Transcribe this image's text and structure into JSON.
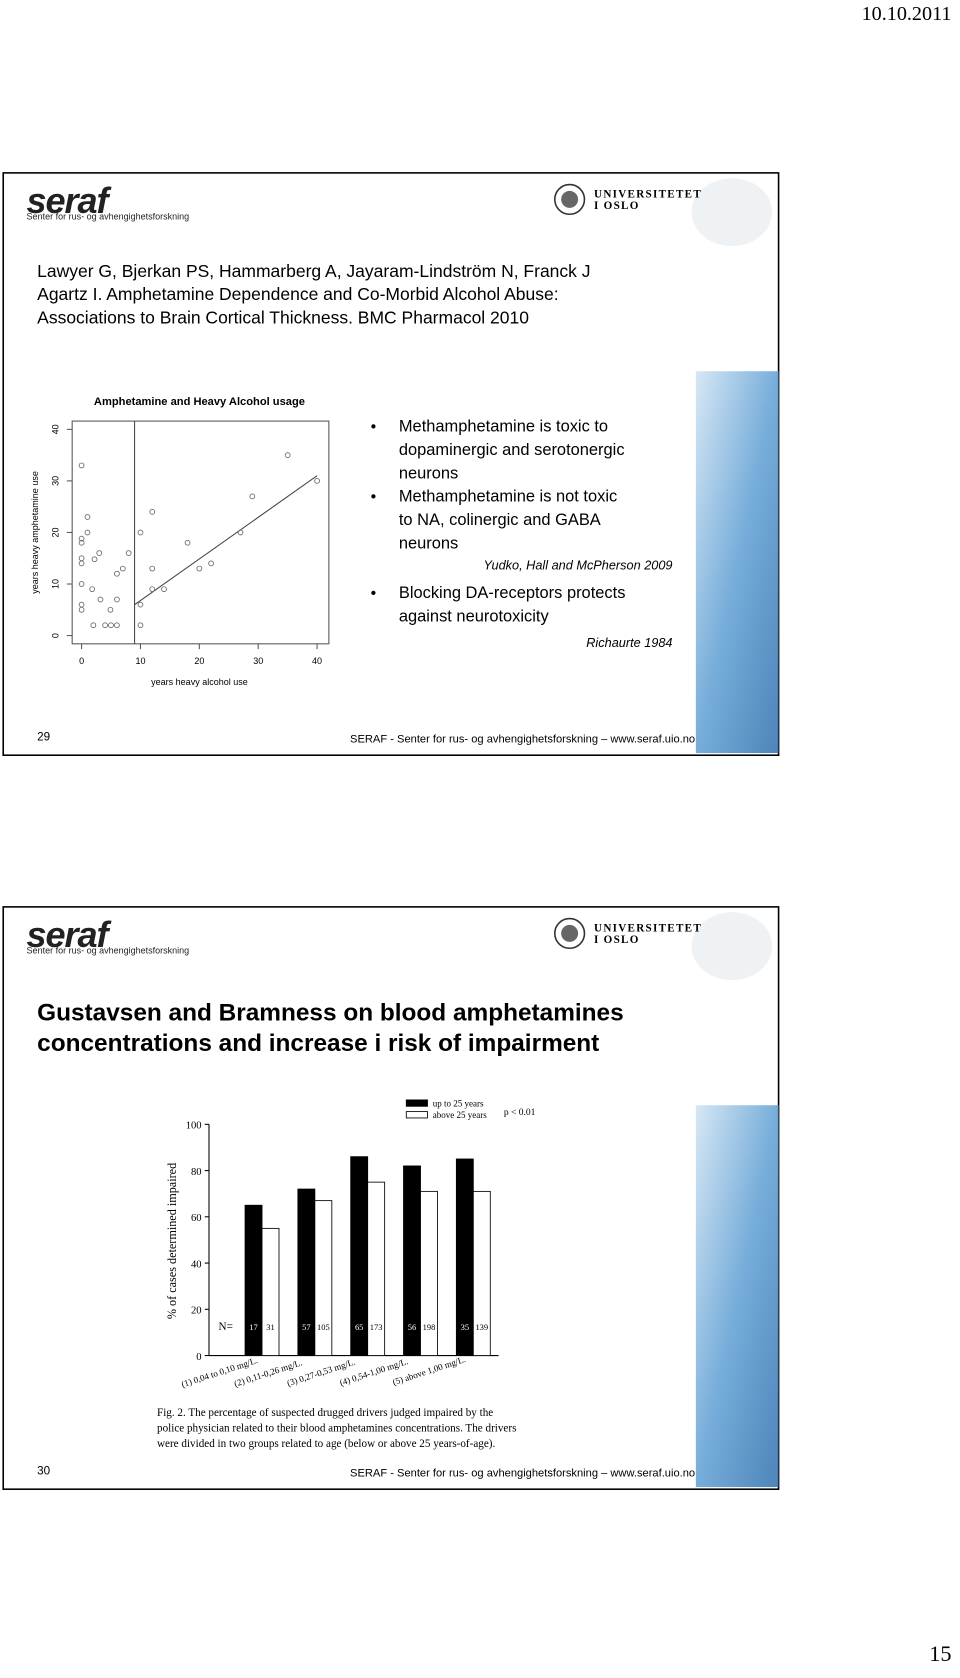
{
  "header_date": "10.10.2011",
  "page_number": "15",
  "slides": [
    {
      "logo": "seraf",
      "logo_subtitle": "Senter for rus- og avhengighetsforskning",
      "university": [
        "UNIVERSITETET",
        "I OSLO"
      ],
      "citation": [
        "Lawyer G, Bjerkan PS, Hammarberg A, Jayaram-Lindström N, Franck J",
        "Agartz I. Amphetamine Dependence and Co-Morbid Alcohol Abuse:",
        "Associations to Brain Cortical Thickness. BMC Pharmacol  2010"
      ],
      "chart_data": {
        "type": "scatter",
        "title": "Amphetamine and Heavy Alcohol usage",
        "x_label": "years heavy alcohol use",
        "y_label": "years heavy amphetamine use",
        "x": [
          0,
          0,
          0,
          1,
          1,
          0,
          0,
          2.2,
          3,
          0,
          1.8,
          0,
          0,
          3.2,
          4.9,
          6,
          7,
          8,
          6,
          2,
          4,
          5,
          6,
          10,
          10,
          10,
          12,
          12,
          12,
          14,
          18,
          20,
          22,
          27,
          29,
          35,
          40
        ],
        "y": [
          33,
          18.8,
          18,
          23,
          20,
          15,
          14,
          14.8,
          16,
          10,
          9,
          6,
          5,
          7,
          5,
          12,
          13,
          16,
          7,
          2,
          2,
          2,
          2,
          20,
          6,
          2,
          24,
          13,
          9,
          9,
          18,
          13,
          14,
          20,
          27,
          35,
          30
        ],
        "vline_x": 9,
        "fit_line": {
          "x": [
            9,
            40
          ],
          "y": [
            6,
            31
          ]
        },
        "xlim": [
          -1.6,
          42
        ],
        "ylim": [
          -1.6,
          41.6
        ],
        "xticks": [
          0,
          10,
          20,
          30,
          40
        ],
        "yticks": [
          0,
          10,
          20,
          30,
          40
        ]
      },
      "bullets": [
        [
          "Methamphetamine is toxic to",
          "dopaminergic and serotonergic",
          "neurons"
        ],
        [
          "Methamphetamine is not toxic",
          "to NA, colinergic and GABA",
          "neurons"
        ],
        [
          "Blocking DA-receptors protects",
          "against neurotoxicity"
        ]
      ],
      "references": [
        "Yudko, Hall and McPherson 2009",
        "Richaurte 1984"
      ],
      "slide_number": "29",
      "footer": "SERAF - Senter for rus- og avhengighetsforskning – www.seraf.uio.no"
    },
    {
      "logo": "seraf",
      "logo_subtitle": "Senter for rus- og avhengighetsforskning",
      "university": [
        "UNIVERSITETET",
        "I OSLO"
      ],
      "title": [
        "Gustavsen and Bramness on blood amphetamines",
        "concentrations and increase i risk of impairment"
      ],
      "chart_data": {
        "type": "bar",
        "y_label": "% of cases determined impaired",
        "categories": [
          "(1) 0,04 to 0,10 mg/L.",
          "(2) 0,11-0,26 mg/L.",
          "(3) 0,27-0,53 mg/L.",
          "(4) 0,54-1,00 mg/L.",
          "(5) above 1,00 mg/L."
        ],
        "series": [
          {
            "name": "up to 25 years",
            "color": "#000000",
            "values": [
              65,
              72,
              86,
              82,
              85
            ],
            "n": [
              17,
              57,
              65,
              56,
              35
            ]
          },
          {
            "name": "above 25 years",
            "color": "#ffffff",
            "values": [
              55,
              67,
              75,
              71,
              71
            ],
            "n": [
              31,
              105,
              173,
              198,
              139
            ]
          }
        ],
        "n_label": "N=",
        "annotation": "p < 0.01",
        "ylim": [
          0,
          100
        ],
        "yticks": [
          0,
          20,
          40,
          60,
          80,
          100
        ],
        "caption": [
          "Fig. 2. The percentage of suspected drugged drivers judged impaired by the",
          "police physician related to their blood amphetamines concentrations. The drivers",
          "were divided in two groups related to age (below or above 25 years-of-age)."
        ]
      },
      "slide_number": "30",
      "footer": "SERAF - Senter for rus- og avhengighetsforskning – www.seraf.uio.no"
    }
  ]
}
